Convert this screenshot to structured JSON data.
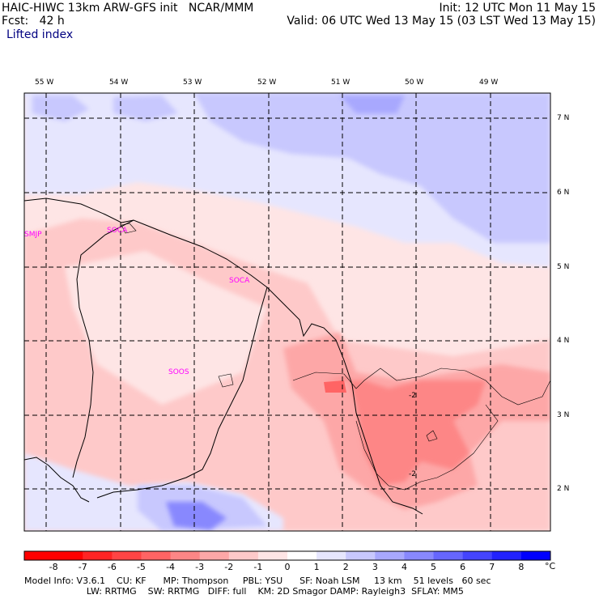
{
  "header": {
    "line1_left": "HAIC-HIWC 13km ARW-GFS init   NCAR/MMM",
    "line1_right": "Init: 12 UTC Mon 11 May 15",
    "line2_left": "Fcst:   42 h",
    "line2_right": "Valid: 06 UTC Wed 13 May 15 (03 LST Wed 13 May 15)",
    "field": "Lifted index"
  },
  "map": {
    "lon_labels": [
      "55 W",
      "54 W",
      "53 W",
      "52 W",
      "51 W",
      "50 W",
      "49 W"
    ],
    "lat_labels": [
      "7 N",
      "6 N",
      "5 N",
      "4 N",
      "3 N",
      "2 N"
    ],
    "stations": [
      "SMJP",
      "SOCA",
      "SOOS"
    ],
    "station_overlap_label": "SOCA",
    "contour_labels": [
      "-2",
      "-2"
    ]
  },
  "colorbar": {
    "ticks": [
      "-8",
      "-7",
      "-6",
      "-5",
      "-4",
      "-3",
      "-2",
      "-1",
      "0",
      "1",
      "2",
      "3",
      "4",
      "5",
      "6",
      "7",
      "8"
    ],
    "unit": "°C",
    "colors": [
      "#ff0000",
      "#ff2424",
      "#ff4444",
      "#ff6464",
      "#fd8686",
      "#fda7a7",
      "#fec9c9",
      "#fee5e5",
      "#ffffff",
      "#e6e6fe",
      "#c8c8fe",
      "#a8a8fe",
      "#8888fe",
      "#6666fe",
      "#4444fe",
      "#2222fe",
      "#0000fe"
    ]
  },
  "footer": {
    "line1": "Model Info: V3.6.1    CU: KF      MP: Thompson     PBL: YSU      SF: Noah LSM     13 km    51 levels   60 sec",
    "line2": "                      LW: RRTMG    SW: RRTMG   DIFF: full    KM: 2D Smagor DAMP: Rayleigh3  SFLAY: MM5"
  }
}
